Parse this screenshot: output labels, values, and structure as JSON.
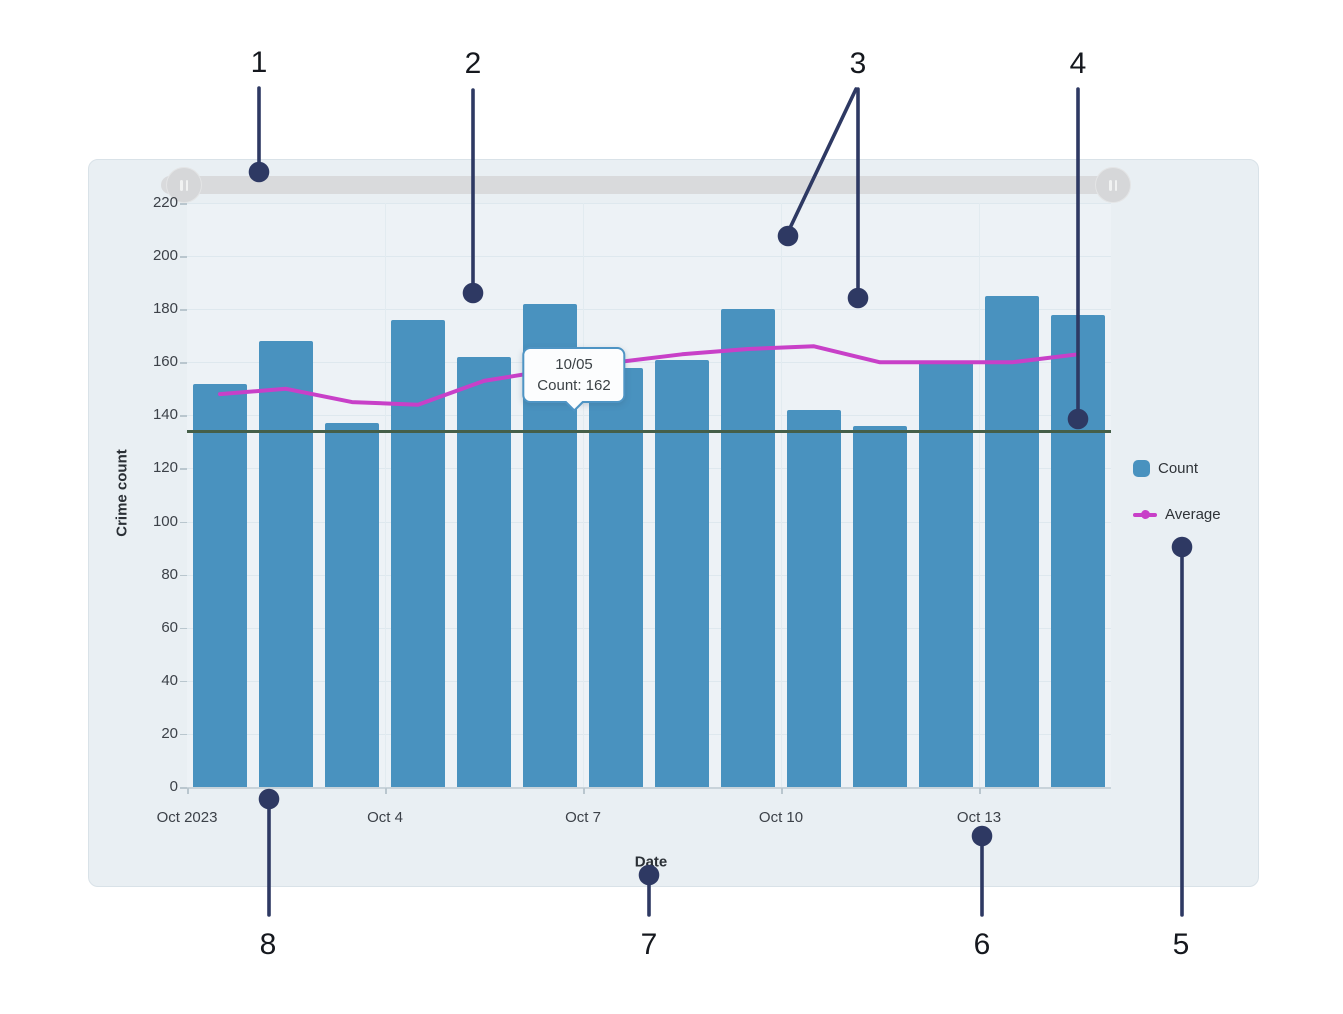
{
  "tooltip": {
    "lines": [
      "10/05",
      "Count: 162"
    ],
    "anchor_index": 4
  },
  "legend": {
    "items": [
      {
        "label": "Count"
      },
      {
        "label": "Average"
      }
    ]
  },
  "slider": {
    "kind": "horizontal-range-scrollbar",
    "track_color": "#d9dadc",
    "handle_color": "#d6d7d9"
  },
  "annotations": {
    "color": "#2e3963",
    "items": [
      {
        "label": "1",
        "number": [
          259,
          63
        ],
        "lines": [
          [
            259,
            88,
            259,
            163
          ]
        ],
        "dots": [
          [
            259,
            172
          ]
        ]
      },
      {
        "label": "2",
        "number": [
          473,
          64
        ],
        "lines": [
          [
            473,
            90,
            473,
            284
          ]
        ],
        "dots": [
          [
            473,
            293
          ]
        ]
      },
      {
        "label": "3",
        "number": [
          858,
          64
        ],
        "lines": [
          [
            856,
            89,
            790,
            228
          ],
          [
            858,
            89,
            858,
            289
          ]
        ],
        "dots": [
          [
            788,
            236
          ],
          [
            858,
            298
          ]
        ]
      },
      {
        "label": "4",
        "number": [
          1078,
          64
        ],
        "lines": [
          [
            1078,
            89,
            1078,
            410
          ]
        ],
        "dots": [
          [
            1078,
            419
          ]
        ]
      },
      {
        "label": "5",
        "number": [
          1181,
          945
        ],
        "lines": [
          [
            1182,
            556,
            1182,
            915
          ]
        ],
        "dots": [
          [
            1182,
            547
          ]
        ]
      },
      {
        "label": "6",
        "number": [
          982,
          945
        ],
        "lines": [
          [
            982,
            845,
            982,
            915
          ]
        ],
        "dots": [
          [
            982,
            836
          ]
        ]
      },
      {
        "label": "7",
        "number": [
          649,
          945
        ],
        "lines": [
          [
            649,
            883,
            649,
            915
          ]
        ],
        "dots": [
          [
            649,
            875
          ]
        ]
      },
      {
        "label": "8",
        "number": [
          268,
          945
        ],
        "lines": [
          [
            269,
            807,
            269,
            915
          ]
        ],
        "dots": [
          [
            269,
            799
          ]
        ]
      }
    ]
  },
  "chart_data": {
    "type": "bar",
    "x": [
      "Oct 1",
      "Oct 2",
      "Oct 3",
      "Oct 4",
      "Oct 5",
      "Oct 6",
      "Oct 7",
      "Oct 8",
      "Oct 9",
      "Oct 10",
      "Oct 11",
      "Oct 12",
      "Oct 13",
      "Oct 14"
    ],
    "x_tick_labels": [
      {
        "index": 0,
        "label": "Oct 2023"
      },
      {
        "index": 3,
        "label": "Oct 4"
      },
      {
        "index": 6,
        "label": "Oct 7"
      },
      {
        "index": 9,
        "label": "Oct 10"
      },
      {
        "index": 12,
        "label": "Oct 13"
      }
    ],
    "series": [
      {
        "name": "Count",
        "type": "bar",
        "color": "#4992bf",
        "values": [
          152,
          168,
          137,
          176,
          162,
          182,
          158,
          161,
          180,
          142,
          136,
          160,
          185,
          178
        ]
      },
      {
        "name": "Average",
        "type": "line",
        "color": "#c840c8",
        "values": [
          148,
          150,
          145,
          144,
          153,
          157,
          160,
          163,
          165,
          166,
          160,
          160,
          160,
          163
        ]
      }
    ],
    "reference_line": {
      "value": 134,
      "color": "#455f49"
    },
    "title": "",
    "xlabel": "Date",
    "ylabel": "Crime count",
    "ylim": [
      0,
      220
    ],
    "ytick_step": 20,
    "grid": true,
    "legend_position": "right"
  }
}
